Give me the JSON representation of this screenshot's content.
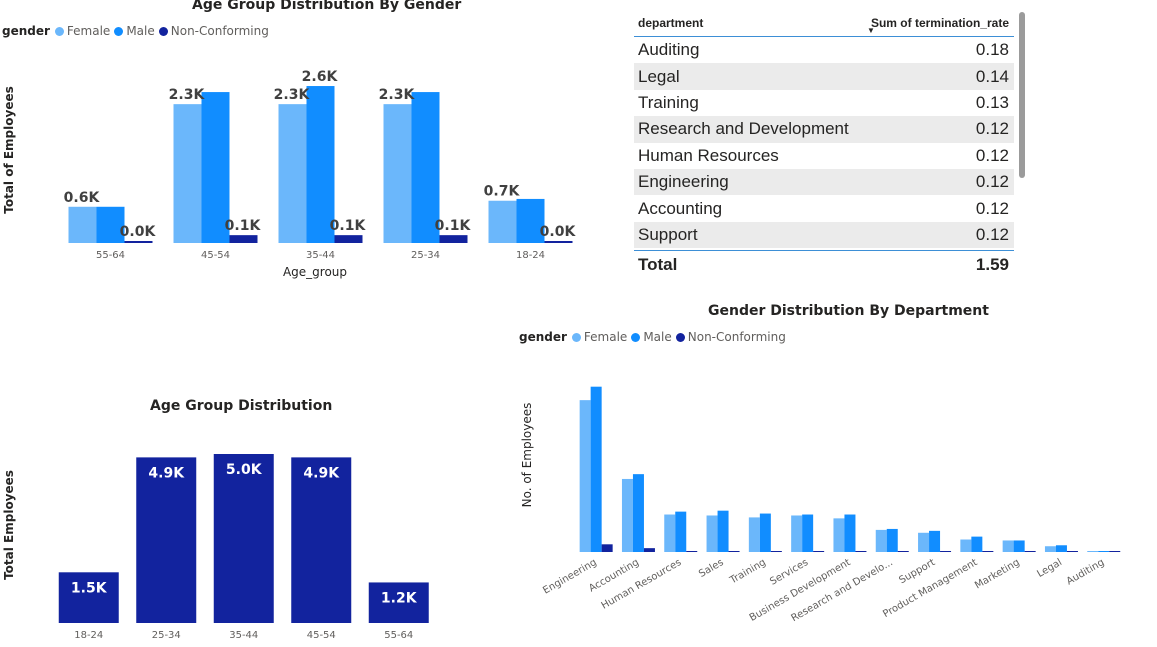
{
  "colors": {
    "female": "#6bb7fb",
    "male": "#118dff",
    "nonconforming": "#12239e",
    "bar": "#12239e"
  },
  "chart_data": [
    {
      "type": "bar",
      "title": "Age Group Distribution By Gender",
      "legend_title": "gender",
      "legend_position": "top-left",
      "xlabel": "Age_group",
      "ylabel": "Total of Employees",
      "categories": [
        "55-64",
        "45-54",
        "35-44",
        "25-34",
        "18-24"
      ],
      "series": [
        {
          "name": "Female",
          "values": [
            600,
            2300,
            2300,
            2300,
            700
          ]
        },
        {
          "name": "Male",
          "values": [
            600,
            2500,
            2600,
            2500,
            730
          ]
        },
        {
          "name": "Non-Conforming",
          "values": [
            10,
            130,
            130,
            130,
            10
          ]
        }
      ],
      "labels": [
        {
          "category": "55-64",
          "series": "Female",
          "text": "0.6K"
        },
        {
          "category": "55-64",
          "series": "Non-Conforming",
          "text": "0.0K"
        },
        {
          "category": "45-54",
          "series": "Female",
          "text": "2.3K"
        },
        {
          "category": "45-54",
          "series": "Non-Conforming",
          "text": "0.1K"
        },
        {
          "category": "35-44",
          "series": "Female",
          "text": "2.3K"
        },
        {
          "category": "35-44",
          "series": "Male",
          "text": "2.6K"
        },
        {
          "category": "35-44",
          "series": "Non-Conforming",
          "text": "0.1K"
        },
        {
          "category": "25-34",
          "series": "Female",
          "text": "2.3K"
        },
        {
          "category": "25-34",
          "series": "Non-Conforming",
          "text": "0.1K"
        },
        {
          "category": "18-24",
          "series": "Female",
          "text": "0.7K"
        },
        {
          "category": "18-24",
          "series": "Non-Conforming",
          "text": "0.0K"
        }
      ],
      "ylim": [
        0,
        2700
      ],
      "grid": false
    },
    {
      "type": "table",
      "columns": [
        "department",
        "Sum of termination_rate"
      ],
      "sort_column": "Sum of termination_rate",
      "sort_order": "descending",
      "rows": [
        [
          "Auditing",
          "0.18"
        ],
        [
          "Legal",
          "0.14"
        ],
        [
          "Training",
          "0.13"
        ],
        [
          "Research and Development",
          "0.12"
        ],
        [
          "Human Resources",
          "0.12"
        ],
        [
          "Engineering",
          "0.12"
        ],
        [
          "Accounting",
          "0.12"
        ],
        [
          "Support",
          "0.12"
        ]
      ],
      "total": [
        "Total",
        "1.59"
      ]
    },
    {
      "type": "bar",
      "title": "Age Group Distribution",
      "xlabel": "",
      "ylabel": "Total Employees",
      "categories": [
        "18-24",
        "25-34",
        "35-44",
        "45-54",
        "55-64"
      ],
      "values": [
        1500,
        4900,
        5000,
        4900,
        1200
      ],
      "labels": [
        "1.5K",
        "4.9K",
        "5.0K",
        "4.9K",
        "1.2K"
      ],
      "ylim": [
        0,
        5000
      ],
      "grid": false
    },
    {
      "type": "bar",
      "title": "Gender Distribution By Department",
      "legend_title": "gender",
      "legend_position": "top-left",
      "xlabel": "",
      "ylabel": "No. of Employees",
      "categories": [
        "Engineering",
        "Accounting",
        "Human Resources",
        "Sales",
        "Training",
        "Services",
        "Business Development",
        "Research and Develo...",
        "Support",
        "Product Management",
        "Marketing",
        "Legal",
        "Auditing"
      ],
      "series": [
        {
          "name": "Female",
          "values": [
            158,
            76,
            39,
            38,
            36,
            38,
            35,
            23,
            20,
            13,
            12,
            6,
            1
          ]
        },
        {
          "name": "Male",
          "values": [
            172,
            81,
            42,
            43,
            40,
            39,
            39,
            24,
            22,
            16,
            12,
            7,
            1
          ]
        },
        {
          "name": "Non-Conforming",
          "values": [
            8,
            4,
            1,
            1,
            1,
            1,
            1,
            0.5,
            0.5,
            0.5,
            0.3,
            0.2,
            0.1
          ]
        }
      ],
      "ylim": [
        0,
        180
      ],
      "grid": false
    }
  ]
}
